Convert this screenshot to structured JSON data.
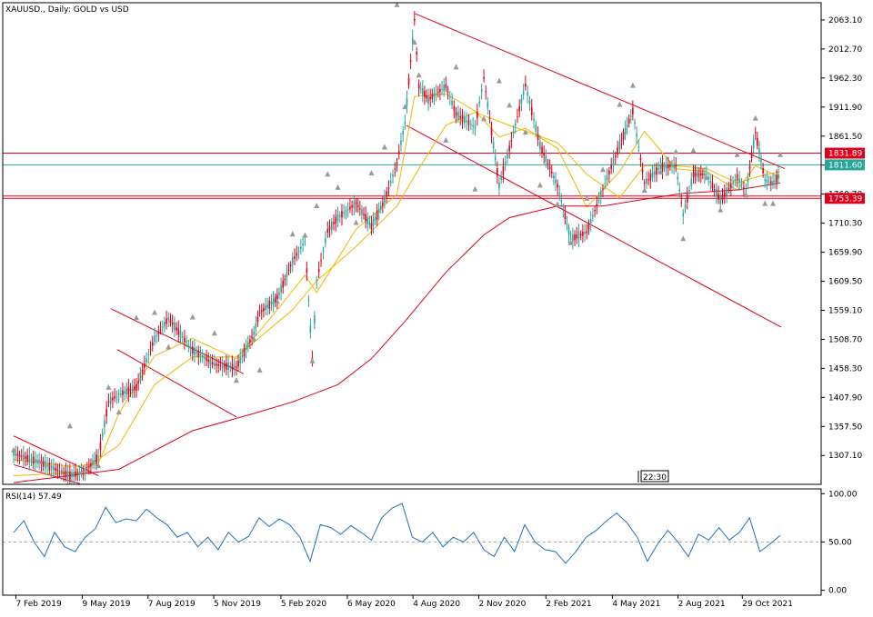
{
  "chart_data": [
    {
      "type": "line",
      "title": "XAUUSD., Daily:  GOLD vs USD",
      "xlabel": "",
      "ylabel": "",
      "ylim": [
        1257.0,
        2093.0
      ],
      "y_ticks": [
        1307.1,
        1357.5,
        1407.9,
        1458.3,
        1508.7,
        1559.1,
        1609.5,
        1659.9,
        1710.3,
        1760.7,
        1811.1,
        1861.5,
        1911.9,
        1962.3,
        2012.7,
        2063.1
      ],
      "y_tick_labels": [
        "1307.10",
        "1357.50",
        "1407.90",
        "1458.30",
        "1508.70",
        "1559.10",
        "1609.50",
        "1659.90",
        "1710.30",
        "1760.70",
        "1811.10",
        "1861.50",
        "1911.90",
        "1962.30",
        "2012.70",
        "2063.10"
      ],
      "x_tick_labels": [
        "7 Feb 2019",
        "9 May 2019",
        "7 Aug 2019",
        "5 Nov 2019",
        "5 Feb 2020",
        "6 May 2020",
        "4 Aug 2020",
        "2 Nov 2020",
        "2 Feb 2021",
        "4 May 2021",
        "2 Aug 2021",
        "29 Oct 2021"
      ],
      "timeframe_badge": "22:30",
      "price_labels": [
        {
          "value": 1831.89,
          "label": "1831.89",
          "color": "#e0001b",
          "text_color": "#ffffff"
        },
        {
          "value": 1811.6,
          "label": "1811.60",
          "color": "#27a69a",
          "text_color": "#ffffff"
        },
        {
          "value": 1753.39,
          "label": "1753.39",
          "color": "#e0001b",
          "text_color": "#ffffff"
        }
      ],
      "horizontal_lines": [
        {
          "value": 1831.89,
          "color": "#e0001b"
        },
        {
          "value": 1811.6,
          "color": "#27a69a"
        },
        {
          "value": 1757.5,
          "color": "#e0001b"
        },
        {
          "value": 1753.39,
          "color": "#e0001b"
        }
      ],
      "trend_lines": [
        {
          "name": "wedge-top",
          "x": [
            "2020-08-07",
            "2021-12-26"
          ],
          "y": [
            2074,
            1805
          ],
          "color": "#e0001b"
        },
        {
          "name": "wedge-bottom",
          "x": [
            "2020-07-26",
            "2021-12-21"
          ],
          "y": [
            1880,
            1530
          ],
          "color": "#e0001b"
        },
        {
          "name": "flag-2019-top",
          "x": [
            "2019-06-17",
            "2019-12-16"
          ],
          "y": [
            1562,
            1449
          ],
          "color": "#e0001b"
        },
        {
          "name": "flag-2019-bottom",
          "x": [
            "2019-06-26",
            "2019-12-06"
          ],
          "y": [
            1491,
            1374
          ],
          "color": "#e0001b"
        },
        {
          "name": "flag-early-top",
          "x": [
            "2019-02-04",
            "2019-05-31"
          ],
          "y": [
            1341,
            1272
          ],
          "color": "#e0001b"
        },
        {
          "name": "flag-early-bottom",
          "x": [
            "2019-02-04",
            "2019-05-06"
          ],
          "y": [
            1291,
            1258
          ],
          "color": "#e0001b"
        }
      ],
      "candles": {
        "color_up": "#27a69a",
        "color_down": "#e0001b",
        "x": [
          "2019-02-04",
          "2019-03-11",
          "2019-04-22",
          "2019-05-13",
          "2019-05-31",
          "2019-06-14",
          "2019-06-28",
          "2019-07-22",
          "2019-08-16",
          "2019-09-04",
          "2019-10-07",
          "2019-11-06",
          "2019-12-06",
          "2019-12-30",
          "2020-01-07",
          "2020-01-31",
          "2020-02-21",
          "2020-03-09",
          "2020-03-19",
          "2020-03-25",
          "2020-04-09",
          "2020-04-23",
          "2020-05-18",
          "2020-06-08",
          "2020-06-26",
          "2020-07-13",
          "2020-07-24",
          "2020-08-06",
          "2020-08-12",
          "2020-08-25",
          "2020-09-18",
          "2020-10-02",
          "2020-10-28",
          "2020-11-09",
          "2020-11-30",
          "2020-12-14",
          "2021-01-05",
          "2021-01-25",
          "2021-02-18",
          "2021-03-08",
          "2021-03-30",
          "2021-04-21",
          "2021-05-14",
          "2021-06-01",
          "2021-06-17",
          "2021-07-09",
          "2021-07-30",
          "2021-08-09",
          "2021-08-23",
          "2021-09-10",
          "2021-09-29",
          "2021-10-22",
          "2021-11-03",
          "2021-11-16",
          "2021-11-29",
          "2021-12-10",
          "2021-12-20"
        ],
        "y": [
          1310,
          1296,
          1272,
          1280,
          1305,
          1400,
          1413,
          1425,
          1510,
          1545,
          1490,
          1465,
          1460,
          1519,
          1555,
          1580,
          1645,
          1679,
          1475,
          1611,
          1697,
          1720,
          1745,
          1705,
          1750,
          1815,
          1885,
          2063,
          1948,
          1925,
          1948,
          1900,
          1877,
          1962,
          1776,
          1840,
          1950,
          1845,
          1775,
          1683,
          1695,
          1770,
          1845,
          1905,
          1780,
          1808,
          1810,
          1725,
          1795,
          1795,
          1750,
          1790,
          1765,
          1868,
          1785,
          1780,
          1795
        ]
      },
      "moving_averages": [
        {
          "color": "#f0b800",
          "x": [
            "2019-02-04",
            "2019-04-22",
            "2019-05-31",
            "2019-06-28",
            "2019-08-16",
            "2019-10-07",
            "2019-12-06",
            "2020-01-31",
            "2020-03-09",
            "2020-03-25",
            "2020-05-18",
            "2020-07-13",
            "2020-08-06",
            "2020-09-18",
            "2020-10-28",
            "2020-11-30",
            "2021-01-05",
            "2021-02-18",
            "2021-03-30",
            "2021-05-14",
            "2021-06-17",
            "2021-07-30",
            "2021-09-10",
            "2021-10-22",
            "2021-11-16",
            "2021-12-20"
          ],
          "y": [
            1300,
            1288,
            1293,
            1380,
            1480,
            1510,
            1475,
            1560,
            1620,
            1590,
            1700,
            1760,
            1930,
            1935,
            1905,
            1860,
            1875,
            1840,
            1738,
            1800,
            1870,
            1805,
            1800,
            1768,
            1810,
            1790
          ]
        },
        {
          "color": "#f0b800",
          "x": [
            "2019-02-04",
            "2019-05-06",
            "2019-06-28",
            "2019-08-16",
            "2019-10-07",
            "2019-12-06",
            "2020-02-21",
            "2020-03-25",
            "2020-05-18",
            "2020-07-13",
            "2020-08-12",
            "2020-09-18",
            "2020-10-28",
            "2020-12-14",
            "2021-02-18",
            "2021-03-30",
            "2021-05-14",
            "2021-06-17",
            "2021-07-30",
            "2021-09-10",
            "2021-10-22",
            "2021-11-16",
            "2021-12-20"
          ],
          "y": [
            1272,
            1278,
            1325,
            1430,
            1478,
            1478,
            1560,
            1610,
            1670,
            1740,
            1805,
            1880,
            1903,
            1880,
            1850,
            1795,
            1755,
            1810,
            1810,
            1805,
            1780,
            1790,
            1800
          ]
        },
        {
          "color": "#e0001b",
          "x": [
            "2019-02-04",
            "2019-06-28",
            "2019-10-07",
            "2019-12-30",
            "2020-02-21",
            "2020-04-23",
            "2020-06-08",
            "2020-07-24",
            "2020-09-18",
            "2020-11-09",
            "2020-12-14",
            "2021-02-18",
            "2021-04-21",
            "2021-06-17",
            "2021-08-09",
            "2021-10-22",
            "2021-12-20"
          ],
          "y": [
            1260,
            1283,
            1350,
            1380,
            1400,
            1430,
            1475,
            1540,
            1625,
            1690,
            1720,
            1740,
            1740,
            1752,
            1762,
            1768,
            1780
          ]
        }
      ],
      "fractal_markers": [
        1317,
        1298,
        1359,
        1283,
        1290,
        1426,
        1383,
        1547,
        1556,
        1496,
        1548,
        1520,
        1438,
        1510,
        1456,
        1575,
        1692,
        1690,
        1472,
        1741,
        1796,
        1773,
        1712,
        1798,
        1843,
        2090,
        1913,
        2025,
        1968,
        1928,
        1855,
        1982,
        1770,
        1892,
        1958,
        1916,
        1869,
        1777,
        1744,
        1677,
        1754,
        1804,
        1917,
        1950,
        1768,
        1800,
        1835,
        1684,
        1837,
        1790,
        1734,
        1830,
        1760,
        1893,
        1745,
        1745,
        1830
      ]
    },
    {
      "type": "line",
      "title": "RSI(14) 57.49",
      "xlabel": "",
      "ylabel": "",
      "ylim": [
        -5,
        105
      ],
      "y_ticks": [
        0,
        50,
        100
      ],
      "y_tick_labels": [
        "0.00",
        "50.00",
        "100.00"
      ],
      "levels": [
        50
      ],
      "color": "#1e70c8",
      "x": [
        "2019-02-04",
        "2019-02-18",
        "2019-03-04",
        "2019-03-18",
        "2019-04-01",
        "2019-04-15",
        "2019-04-29",
        "2019-05-13",
        "2019-05-27",
        "2019-06-10",
        "2019-06-24",
        "2019-07-08",
        "2019-07-22",
        "2019-08-05",
        "2019-08-19",
        "2019-09-02",
        "2019-09-16",
        "2019-09-30",
        "2019-10-14",
        "2019-10-28",
        "2019-11-11",
        "2019-11-25",
        "2019-12-09",
        "2019-12-23",
        "2020-01-06",
        "2020-01-20",
        "2020-02-03",
        "2020-02-17",
        "2020-03-02",
        "2020-03-16",
        "2020-03-30",
        "2020-04-13",
        "2020-04-27",
        "2020-05-11",
        "2020-05-25",
        "2020-06-08",
        "2020-06-22",
        "2020-07-06",
        "2020-07-20",
        "2020-08-03",
        "2020-08-17",
        "2020-08-31",
        "2020-09-14",
        "2020-09-28",
        "2020-10-12",
        "2020-10-26",
        "2020-11-09",
        "2020-11-23",
        "2020-12-07",
        "2020-12-21",
        "2021-01-04",
        "2021-01-18",
        "2021-02-01",
        "2021-02-15",
        "2021-03-01",
        "2021-03-15",
        "2021-03-29",
        "2021-04-12",
        "2021-04-26",
        "2021-05-10",
        "2021-05-24",
        "2021-06-07",
        "2021-06-21",
        "2021-07-05",
        "2021-07-19",
        "2021-08-02",
        "2021-08-16",
        "2021-08-30",
        "2021-09-13",
        "2021-09-27",
        "2021-10-11",
        "2021-10-25",
        "2021-11-08",
        "2021-11-22",
        "2021-12-06",
        "2021-12-20"
      ],
      "y": [
        60,
        72,
        50,
        35,
        60,
        45,
        40,
        55,
        64,
        86,
        70,
        74,
        72,
        84,
        75,
        68,
        55,
        60,
        45,
        55,
        42,
        60,
        50,
        56,
        75,
        66,
        74,
        68,
        55,
        30,
        68,
        65,
        58,
        67,
        60,
        52,
        75,
        85,
        90,
        55,
        50,
        60,
        45,
        55,
        50,
        60,
        42,
        35,
        55,
        40,
        68,
        50,
        42,
        40,
        28,
        40,
        55,
        62,
        72,
        80,
        70,
        55,
        30,
        48,
        62,
        50,
        35,
        58,
        52,
        65,
        52,
        60,
        75,
        40,
        48,
        57
      ]
    }
  ]
}
